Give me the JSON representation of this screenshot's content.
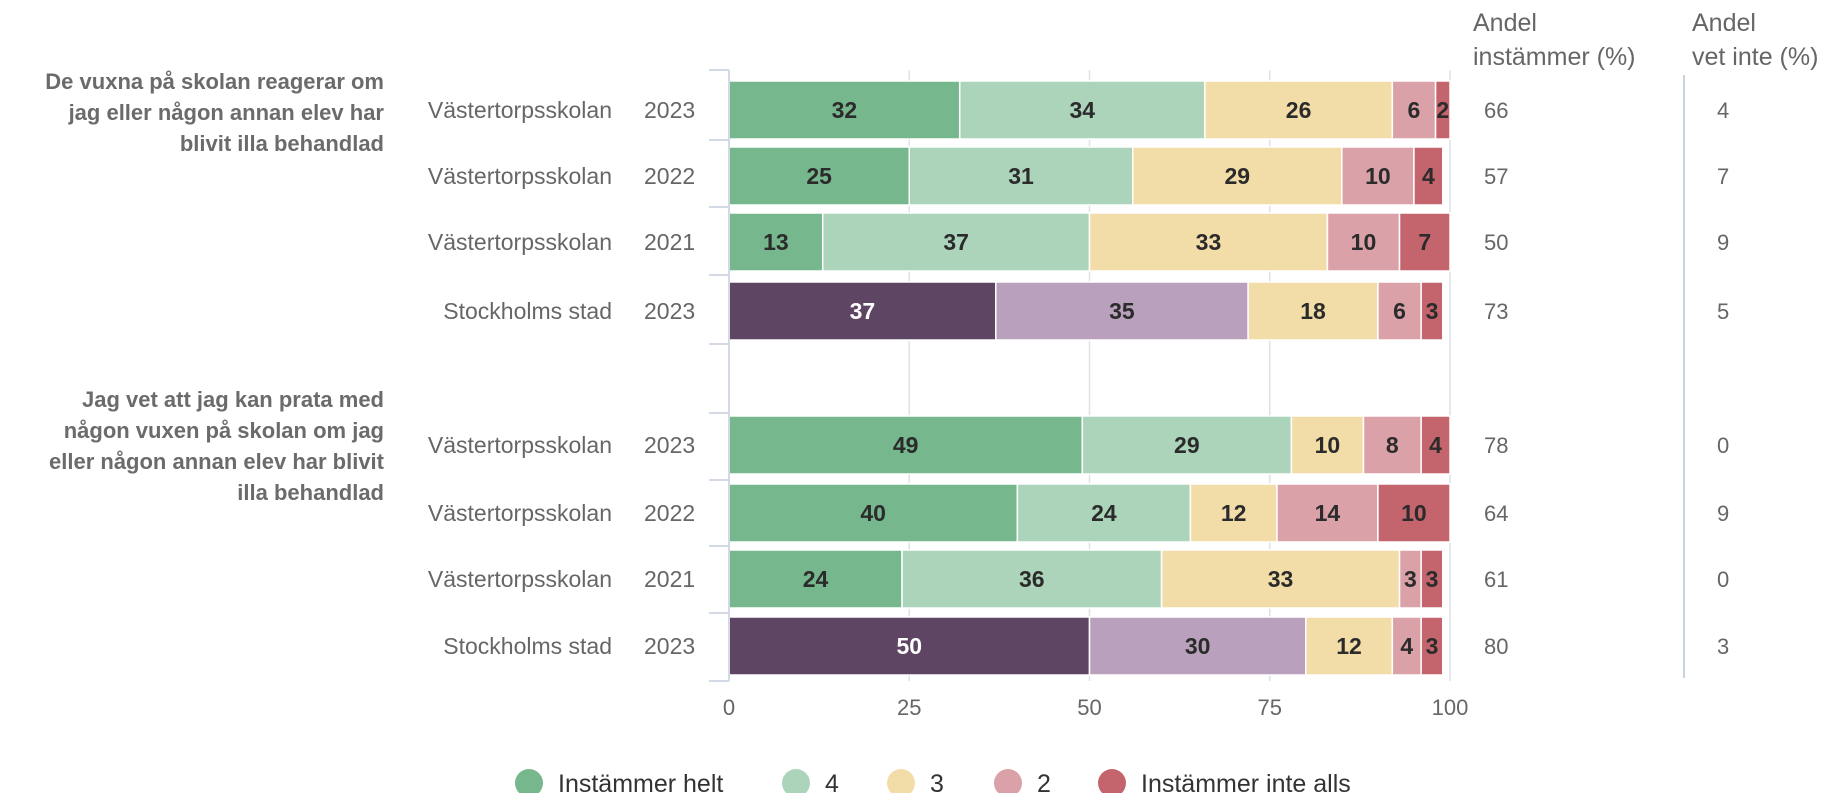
{
  "chart_data": {
    "type": "bar",
    "orientation": "horizontal",
    "stacked": true,
    "xlim": [
      0,
      100
    ],
    "xticks": [
      "0",
      "25",
      "50",
      "75",
      "100"
    ],
    "grid": true,
    "legend_position": "bottom",
    "columns": {
      "agree_header": [
        "Andel",
        "instämmer (%)"
      ],
      "dontknow_header": [
        "Andel",
        "vet inte (%)"
      ]
    },
    "legend": [
      {
        "label": "Instämmer helt",
        "color": "#76b78d"
      },
      {
        "label": "4",
        "color": "#acd4bb"
      },
      {
        "label": "3",
        "color": "#f2dca8"
      },
      {
        "label": "2",
        "color": "#dba1a8"
      },
      {
        "label": "Instämmer inte alls",
        "color": "#c4646d"
      }
    ],
    "school_colors": [
      "#76b78d",
      "#acd4bb",
      "#f2dca8",
      "#dba1a8",
      "#c4646d"
    ],
    "city_colors": [
      "#5e4563",
      "#b9a1bd",
      "#f2dca8",
      "#dba1a8",
      "#c4646d"
    ],
    "groups": [
      {
        "question": [
          "De vuxna på skolan reagerar om",
          "jag eller någon annan elev har",
          "blivit illa behandlad"
        ],
        "rows": [
          {
            "unit": "Västertorpsskolan",
            "year": "2023",
            "values": [
              32,
              34,
              26,
              6,
              2
            ],
            "agree": "66",
            "dontknow": "4",
            "colorset": "school"
          },
          {
            "unit": "Västertorpsskolan",
            "year": "2022",
            "values": [
              25,
              31,
              29,
              10,
              4
            ],
            "agree": "57",
            "dontknow": "7",
            "colorset": "school"
          },
          {
            "unit": "Västertorpsskolan",
            "year": "2021",
            "values": [
              13,
              37,
              33,
              10,
              7
            ],
            "agree": "50",
            "dontknow": "9",
            "colorset": "school"
          },
          {
            "unit": "Stockholms stad",
            "year": "2023",
            "values": [
              37,
              35,
              18,
              6,
              3
            ],
            "agree": "73",
            "dontknow": "5",
            "colorset": "city"
          }
        ]
      },
      {
        "question": [
          "Jag vet att jag kan prata med",
          "någon vuxen på skolan om jag",
          "eller någon annan elev har blivit",
          "illa behandlad"
        ],
        "rows": [
          {
            "unit": "Västertorpsskolan",
            "year": "2023",
            "values": [
              49,
              29,
              10,
              8,
              4
            ],
            "agree": "78",
            "dontknow": "0",
            "colorset": "school"
          },
          {
            "unit": "Västertorpsskolan",
            "year": "2022",
            "values": [
              40,
              24,
              12,
              14,
              10
            ],
            "agree": "64",
            "dontknow": "9",
            "colorset": "school"
          },
          {
            "unit": "Västertorpsskolan",
            "year": "2021",
            "values": [
              24,
              36,
              33,
              3,
              3
            ],
            "agree": "61",
            "dontknow": "0",
            "colorset": "school"
          },
          {
            "unit": "Stockholms stad",
            "year": "2023",
            "values": [
              50,
              30,
              12,
              4,
              3
            ],
            "agree": "80",
            "dontknow": "3",
            "colorset": "city"
          }
        ]
      }
    ]
  }
}
